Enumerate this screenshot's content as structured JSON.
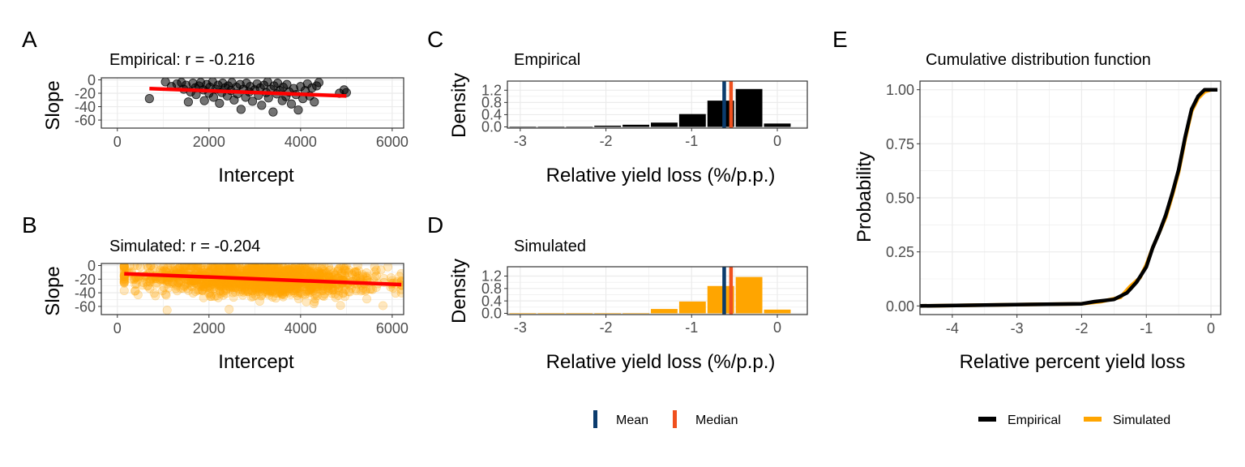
{
  "colors": {
    "empirical": "#000000",
    "simulated": "#FFA500",
    "fit_line": "#FF0000",
    "mean": "#0B3C6E",
    "median": "#F0501E",
    "grid": "#EBEBEB",
    "tick_text": "#4D4D4D"
  },
  "panel_tags": {
    "A": "A",
    "B": "B",
    "C": "C",
    "D": "D",
    "E": "E"
  },
  "legends": {
    "stats": [
      {
        "label": "Mean",
        "color_key": "mean"
      },
      {
        "label": "Median",
        "color_key": "median"
      }
    ],
    "cdf": [
      {
        "label": "Empirical",
        "color_key": "empirical"
      },
      {
        "label": "Simulated",
        "color_key": "simulated"
      }
    ]
  },
  "chart_data": [
    {
      "id": "A",
      "type": "scatter",
      "title": "Empirical: r = -0.216",
      "xlabel": "Intercept",
      "ylabel": "Slope",
      "xlim": [
        -350,
        6250
      ],
      "ylim": [
        -72,
        3
      ],
      "xticks": [
        0,
        2000,
        4000,
        6000
      ],
      "xtick_labels": [
        "0",
        "2000",
        "4000",
        "6000"
      ],
      "yticks": [
        0,
        -20,
        -40,
        -60
      ],
      "ytick_labels": [
        "0",
        "-20",
        "-40",
        "-60"
      ],
      "point_color_key": "empirical",
      "points": [
        [
          700,
          -28
        ],
        [
          1050,
          -3
        ],
        [
          1180,
          -10
        ],
        [
          1300,
          -6
        ],
        [
          1400,
          -4
        ],
        [
          1450,
          -14
        ],
        [
          1500,
          -8
        ],
        [
          1550,
          -33
        ],
        [
          1600,
          -18
        ],
        [
          1650,
          -5
        ],
        [
          1700,
          -12
        ],
        [
          1720,
          -22
        ],
        [
          1780,
          -9
        ],
        [
          1820,
          -4
        ],
        [
          1880,
          -15
        ],
        [
          1900,
          -31
        ],
        [
          1950,
          -7
        ],
        [
          2000,
          -20
        ],
        [
          2020,
          -11
        ],
        [
          2080,
          -3
        ],
        [
          2100,
          -26
        ],
        [
          2150,
          -14
        ],
        [
          2200,
          -8
        ],
        [
          2230,
          -35
        ],
        [
          2280,
          -19
        ],
        [
          2300,
          -5
        ],
        [
          2350,
          -12
        ],
        [
          2400,
          -24
        ],
        [
          2420,
          -9
        ],
        [
          2480,
          -16
        ],
        [
          2500,
          -4
        ],
        [
          2550,
          -30
        ],
        [
          2600,
          -11
        ],
        [
          2620,
          -21
        ],
        [
          2680,
          -7
        ],
        [
          2700,
          -44
        ],
        [
          2750,
          -14
        ],
        [
          2800,
          -26
        ],
        [
          2820,
          -5
        ],
        [
          2880,
          -18
        ],
        [
          2900,
          -10
        ],
        [
          2950,
          -32
        ],
        [
          3000,
          -15
        ],
        [
          3050,
          -6
        ],
        [
          3080,
          -23
        ],
        [
          3120,
          -12
        ],
        [
          3150,
          -38
        ],
        [
          3200,
          -8
        ],
        [
          3250,
          -19
        ],
        [
          3280,
          -3
        ],
        [
          3300,
          -27
        ],
        [
          3350,
          -14
        ],
        [
          3400,
          -48
        ],
        [
          3420,
          -9
        ],
        [
          3480,
          -21
        ],
        [
          3500,
          -5
        ],
        [
          3550,
          -16
        ],
        [
          3600,
          -31
        ],
        [
          3620,
          -11
        ],
        [
          3680,
          -25
        ],
        [
          3700,
          -7
        ],
        [
          3750,
          -18
        ],
        [
          3800,
          -36
        ],
        [
          3850,
          -13
        ],
        [
          3900,
          -22
        ],
        [
          3950,
          -45
        ],
        [
          4000,
          -10
        ],
        [
          4050,
          -28
        ],
        [
          4100,
          -16
        ],
        [
          4150,
          -6
        ],
        [
          4200,
          -24
        ],
        [
          4250,
          -12
        ],
        [
          4300,
          -33
        ],
        [
          4350,
          -9
        ],
        [
          4400,
          -4
        ],
        [
          4850,
          -20
        ],
        [
          4950,
          -15
        ],
        [
          5000,
          -19
        ]
      ],
      "fit_line": {
        "x": [
          700,
          5000
        ],
        "y": [
          -13,
          -24
        ]
      }
    },
    {
      "id": "B",
      "type": "scatter",
      "title": "Simulated: r = -0.204",
      "xlabel": "Intercept",
      "ylabel": "Slope",
      "xlim": [
        -350,
        6250
      ],
      "ylim": [
        -72,
        3
      ],
      "xticks": [
        0,
        2000,
        4000,
        6000
      ],
      "xtick_labels": [
        "0",
        "2000",
        "4000",
        "6000"
      ],
      "yticks": [
        0,
        -20,
        -40,
        -60
      ],
      "ytick_labels": [
        "0",
        "-20",
        "-40",
        "-60"
      ],
      "point_color_key": "simulated",
      "point_cloud": {
        "count": 1500,
        "x_mean": 3100,
        "x_sd": 1300,
        "x_range": [
          150,
          6200
        ],
        "y_mean": -20,
        "y_sd": 12,
        "y_range": [
          -68,
          0
        ],
        "correlation": -0.204
      },
      "fit_line": {
        "x": [
          150,
          6200
        ],
        "y": [
          -12,
          -28
        ]
      }
    },
    {
      "id": "C",
      "type": "bar",
      "title": "Empirical",
      "xlabel": "Relative yield loss (%/p.p.)",
      "ylabel": "Density",
      "xlim": [
        -3.15,
        0.35
      ],
      "ylim": [
        -0.04,
        1.5
      ],
      "xticks": [
        -3,
        -2,
        -1,
        0
      ],
      "xtick_labels": [
        "-3",
        "-2",
        "-1",
        "0"
      ],
      "yticks": [
        0,
        0.4,
        0.8,
        1.2
      ],
      "ytick_labels": [
        "0.0",
        "0.4",
        "0.8",
        "1.2"
      ],
      "bin_width": 0.33,
      "bin_centers": [
        -2.97,
        -2.64,
        -2.31,
        -1.98,
        -1.65,
        -1.32,
        -0.99,
        -0.66,
        -0.33,
        0.0
      ],
      "values": [
        0.0,
        0.0,
        0.0,
        0.04,
        0.07,
        0.14,
        0.42,
        0.86,
        1.24,
        0.11
      ],
      "bar_color_key": "empirical",
      "mean": -0.62,
      "median": -0.54
    },
    {
      "id": "D",
      "type": "bar",
      "title": "Simulated",
      "xlabel": "Relative yield loss (%/p.p.)",
      "ylabel": "Density",
      "xlim": [
        -3.15,
        0.35
      ],
      "ylim": [
        -0.04,
        1.5
      ],
      "xticks": [
        -3,
        -2,
        -1,
        0
      ],
      "xtick_labels": [
        "-3",
        "-2",
        "-1",
        "0"
      ],
      "yticks": [
        0,
        0.4,
        0.8,
        1.2
      ],
      "ytick_labels": [
        "0.0",
        "0.4",
        "0.8",
        "1.2"
      ],
      "bin_width": 0.33,
      "bin_centers": [
        -2.97,
        -2.64,
        -2.31,
        -1.98,
        -1.65,
        -1.32,
        -0.99,
        -0.66,
        -0.33,
        0.0
      ],
      "values": [
        0.0,
        0.0,
        0.0,
        0.0,
        0.0,
        0.14,
        0.38,
        0.88,
        1.17,
        0.12
      ],
      "bar_color_key": "simulated",
      "mean": -0.62,
      "median": -0.54
    },
    {
      "id": "E",
      "type": "line",
      "title": "Cumulative distribution function",
      "xlabel": "Relative percent yield loss",
      "ylabel": "Probability",
      "xlim": [
        -4.5,
        0.15
      ],
      "ylim": [
        -0.04,
        1.04
      ],
      "xticks": [
        -4,
        -3,
        -2,
        -1,
        0
      ],
      "xtick_labels": [
        "-4",
        "-3",
        "-2",
        "-1",
        "0"
      ],
      "yticks": [
        0,
        0.25,
        0.5,
        0.75,
        1.0
      ],
      "ytick_labels": [
        "0.00",
        "0.25",
        "0.50",
        "0.75",
        "1.00"
      ],
      "series": [
        {
          "name": "Simulated",
          "color_key": "simulated",
          "x": [
            -4.5,
            -2.0,
            -1.7,
            -1.4,
            -1.25,
            -1.1,
            -1.0,
            -0.9,
            -0.8,
            -0.7,
            -0.6,
            -0.5,
            -0.4,
            -0.3,
            -0.2,
            -0.1,
            0.0,
            0.1
          ],
          "y": [
            0.0,
            0.01,
            0.02,
            0.04,
            0.09,
            0.13,
            0.19,
            0.27,
            0.34,
            0.41,
            0.51,
            0.62,
            0.77,
            0.9,
            0.96,
            0.99,
            1.0,
            1.0
          ]
        },
        {
          "name": "Empirical",
          "color_key": "empirical",
          "x": [
            -4.5,
            -2.0,
            -1.8,
            -1.5,
            -1.3,
            -1.15,
            -1.0,
            -0.9,
            -0.8,
            -0.7,
            -0.6,
            -0.5,
            -0.4,
            -0.3,
            -0.2,
            -0.1,
            0.0,
            0.1
          ],
          "y": [
            0.0,
            0.01,
            0.02,
            0.03,
            0.06,
            0.11,
            0.18,
            0.27,
            0.34,
            0.42,
            0.52,
            0.63,
            0.78,
            0.91,
            0.97,
            1.0,
            1.0,
            1.0
          ]
        }
      ]
    }
  ]
}
